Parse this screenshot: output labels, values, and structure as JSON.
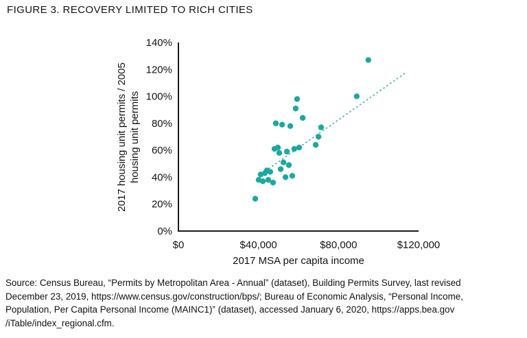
{
  "figure": {
    "title": "FIGURE 3. RECOVERY LIMITED TO RICH CITIES",
    "source_lines": [
      "Source: Census Bureau, “Permits by Metropolitan Area - Annual” (dataset), Building Permits Survey, last revised",
      "December 23, 2019, https://www.census.gov/construction/bps/; Bureau of Economic Analysis, “Personal Income,",
      "Population, Per Capita Personal Income (MAINC1)” (dataset), accessed January 6, 2020, https://apps.bea.gov",
      "/iTable/index_regional.cfm."
    ]
  },
  "chart_data": {
    "type": "scatter",
    "title": "FIGURE 3. RECOVERY LIMITED TO RICH CITIES",
    "xlabel": "2017 MSA per capita income",
    "ylabel": "2017 housing unit permits / 2005 housing unit permits",
    "ylabel_lines": [
      "2017 housing unit permits / 2005",
      "housing unit permits"
    ],
    "xlim": [
      0,
      120000
    ],
    "ylim": [
      0,
      140
    ],
    "grid": false,
    "legend": null,
    "x_ticks": [
      {
        "value": 0,
        "label": "$0"
      },
      {
        "value": 40000,
        "label": "$40,000"
      },
      {
        "value": 80000,
        "label": "$80,000"
      },
      {
        "value": 120000,
        "label": "$120,000"
      }
    ],
    "y_ticks": [
      {
        "value": 0,
        "label": "0%"
      },
      {
        "value": 20,
        "label": "20%"
      },
      {
        "value": 40,
        "label": "40%"
      },
      {
        "value": 60,
        "label": "60%"
      },
      {
        "value": 80,
        "label": "80%"
      },
      {
        "value": 100,
        "label": "100%"
      },
      {
        "value": 120,
        "label": "120%"
      },
      {
        "value": 140,
        "label": "140%"
      }
    ],
    "points": [
      [
        38400,
        24
      ],
      [
        40100,
        38
      ],
      [
        41100,
        42
      ],
      [
        42200,
        37
      ],
      [
        43200,
        43
      ],
      [
        44200,
        45
      ],
      [
        44900,
        38
      ],
      [
        45900,
        44
      ],
      [
        47300,
        36
      ],
      [
        48000,
        61
      ],
      [
        48700,
        80
      ],
      [
        49700,
        62
      ],
      [
        50400,
        58
      ],
      [
        51100,
        46
      ],
      [
        51800,
        79
      ],
      [
        52500,
        51
      ],
      [
        53500,
        40
      ],
      [
        54200,
        59
      ],
      [
        55200,
        49
      ],
      [
        55900,
        78
      ],
      [
        56900,
        41
      ],
      [
        57900,
        61
      ],
      [
        58600,
        91
      ],
      [
        59300,
        98
      ],
      [
        60300,
        62
      ],
      [
        62100,
        84
      ],
      [
        68600,
        64
      ],
      [
        70000,
        70
      ],
      [
        71300,
        77
      ],
      [
        89100,
        100
      ],
      [
        94900,
        127
      ]
    ],
    "trendline": {
      "x1": 40000,
      "y1": 41,
      "x2": 114000,
      "y2": 118,
      "style": "dotted"
    },
    "point_color": "#1BA8A2",
    "trend_color": "#45AFA9",
    "axis_color": "#1A1A1A"
  }
}
